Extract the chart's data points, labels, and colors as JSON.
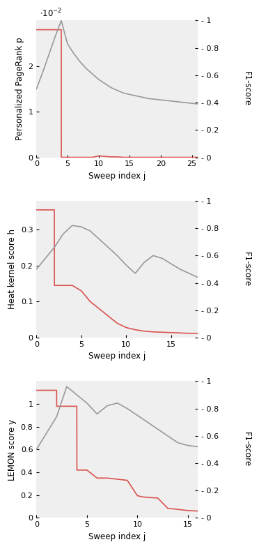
{
  "bg_color": "#efefef",
  "line_color_attachment": "#d9534f",
  "line_color_f1": "#999999",
  "plot1": {
    "ylabel_left": "Personalized PageRank p",
    "xlabel": "Sweep index j",
    "attachment_x": [
      0,
      1,
      2,
      3,
      4,
      4.01,
      5,
      6,
      7,
      8,
      9,
      10,
      11,
      12,
      13,
      14,
      15,
      16,
      17,
      18,
      19,
      20,
      21,
      22,
      23,
      24,
      25,
      26
    ],
    "attachment_y": [
      0.028,
      0.028,
      0.028,
      0.028,
      0.028,
      0.0,
      0.0,
      0.0,
      0.0,
      0.0,
      0.0,
      0.0003,
      0.0002,
      0.0001,
      0.0001,
      0.0,
      0.0,
      0.0,
      0.0,
      0.0,
      0.0,
      0.0,
      0.0,
      0.0,
      0.0,
      0.0,
      0.0,
      0.0
    ],
    "f1_x": [
      0,
      1,
      2,
      3,
      4,
      5,
      6,
      7,
      8,
      9,
      10,
      11,
      12,
      13,
      14,
      15,
      16,
      17,
      18,
      19,
      20,
      21,
      22,
      23,
      24,
      25,
      26
    ],
    "f1_y": [
      0.5,
      0.62,
      0.75,
      0.88,
      1.0,
      0.83,
      0.76,
      0.7,
      0.65,
      0.61,
      0.57,
      0.54,
      0.51,
      0.49,
      0.47,
      0.46,
      0.45,
      0.44,
      0.43,
      0.425,
      0.42,
      0.415,
      0.41,
      0.405,
      0.4,
      0.395,
      0.39
    ],
    "ylim_left": [
      0,
      0.03
    ],
    "ylim_right": [
      0,
      1.0
    ],
    "xlim": [
      0,
      26
    ],
    "xticks": [
      0,
      5,
      10,
      15,
      20,
      25
    ],
    "yticks_left": [
      0.0,
      0.01,
      0.02
    ],
    "ytick_labels_left": [
      "0",
      "1",
      "2"
    ],
    "yticks_right": [
      0.0,
      0.2,
      0.4,
      0.6,
      0.8,
      1.0
    ],
    "ytick_labels_right": [
      "- 0",
      "- 0.2",
      "- 0.4",
      "- 0.6",
      "- 0.8",
      "- 1"
    ]
  },
  "plot2": {
    "ylabel_left": "Heat kernel score h",
    "xlabel": "Sweep index j",
    "attachment_x": [
      0,
      1,
      2,
      2.01,
      3,
      4,
      5,
      6,
      7,
      8,
      9,
      10,
      11,
      12,
      13,
      14,
      15,
      16,
      17,
      18
    ],
    "attachment_y": [
      0.355,
      0.355,
      0.355,
      0.145,
      0.145,
      0.145,
      0.13,
      0.1,
      0.08,
      0.06,
      0.04,
      0.028,
      0.022,
      0.018,
      0.016,
      0.015,
      0.014,
      0.013,
      0.012,
      0.012
    ],
    "f1_x": [
      0,
      1,
      2,
      3,
      4,
      5,
      6,
      7,
      8,
      9,
      10,
      11,
      12,
      13,
      14,
      15,
      16,
      17,
      18
    ],
    "f1_y": [
      0.5,
      0.58,
      0.66,
      0.76,
      0.82,
      0.81,
      0.78,
      0.72,
      0.66,
      0.6,
      0.53,
      0.47,
      0.55,
      0.6,
      0.58,
      0.54,
      0.5,
      0.47,
      0.44
    ],
    "ylim_left": [
      0,
      0.38
    ],
    "ylim_right": [
      0,
      1.0
    ],
    "xlim": [
      0,
      18
    ],
    "xticks": [
      0,
      5,
      10,
      15
    ],
    "yticks_left": [
      0.0,
      0.1,
      0.2,
      0.3
    ],
    "ytick_labels_left": [
      "0",
      "0.1",
      "0.2",
      "0.3"
    ],
    "yticks_right": [
      0.0,
      0.2,
      0.4,
      0.6,
      0.8,
      1.0
    ],
    "ytick_labels_right": [
      "- 0",
      "- 0.2",
      "- 0.4",
      "- 0.6",
      "- 0.8",
      "- 1"
    ]
  },
  "plot3": {
    "ylabel_left": "LEMON score y",
    "xlabel": "Sweep index j",
    "attachment_x": [
      0,
      1,
      2,
      2.01,
      3,
      4,
      4.01,
      5,
      6,
      7,
      8,
      9,
      10,
      10.5,
      11,
      12,
      13,
      14,
      15,
      16
    ],
    "attachment_y": [
      1.12,
      1.12,
      1.12,
      0.98,
      0.98,
      0.98,
      0.42,
      0.42,
      0.35,
      0.35,
      0.34,
      0.33,
      0.195,
      0.185,
      0.18,
      0.175,
      0.085,
      0.075,
      0.065,
      0.06
    ],
    "f1_x": [
      0,
      1,
      2,
      3,
      4,
      5,
      6,
      7,
      8,
      9,
      10,
      11,
      12,
      13,
      14,
      15,
      16
    ],
    "f1_y": [
      0.5,
      0.62,
      0.74,
      0.96,
      0.9,
      0.84,
      0.76,
      0.82,
      0.84,
      0.8,
      0.75,
      0.7,
      0.65,
      0.6,
      0.55,
      0.53,
      0.52
    ],
    "ylim_left": [
      0,
      1.2
    ],
    "ylim_right": [
      0,
      1.0
    ],
    "xlim": [
      0,
      16
    ],
    "xticks": [
      0,
      5,
      10,
      15
    ],
    "yticks_left": [
      0.0,
      0.2,
      0.4,
      0.6,
      0.8,
      1.0
    ],
    "ytick_labels_left": [
      "0",
      "0.2",
      "0.4",
      "0.6",
      "0.8",
      "1"
    ],
    "yticks_right": [
      0.0,
      0.2,
      0.4,
      0.6,
      0.8,
      1.0
    ],
    "ytick_labels_right": [
      "- 0",
      "- 0.2",
      "- 0.4",
      "- 0.6",
      "- 0.8",
      "- 1"
    ]
  }
}
